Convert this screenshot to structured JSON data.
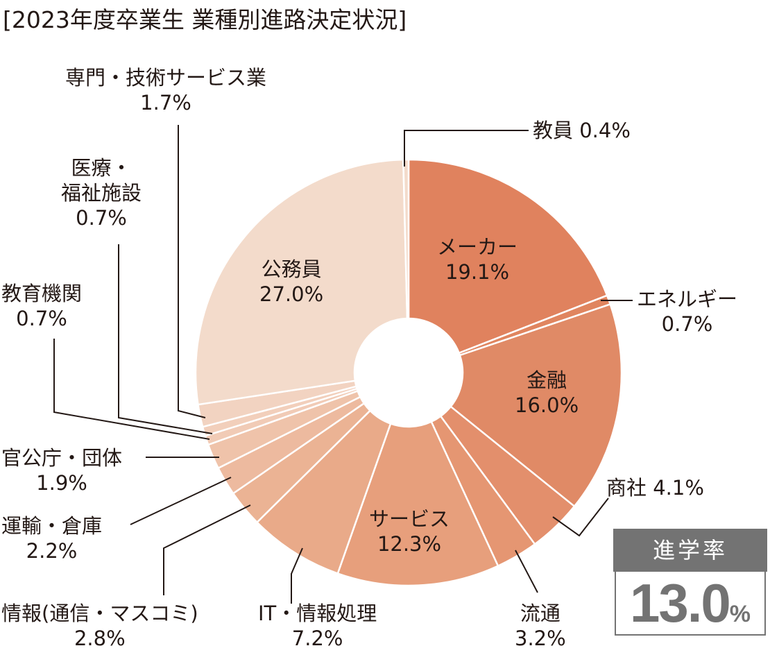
{
  "title": "[2023年度卒業生 業種別進路決定状況]",
  "rate": {
    "label": "進学率",
    "value": "13.0",
    "unit": "%"
  },
  "chart_data": {
    "type": "pie",
    "donut": true,
    "title": "[2023年度卒業生 業種別進路決定状況]",
    "start": "12 o'clock, clockwise",
    "unit": "%",
    "slices": [
      {
        "name": "メーカー",
        "value": 19.1,
        "color": "#E0825E"
      },
      {
        "name": "エネルギー",
        "value": 0.7,
        "color": "#E0855F"
      },
      {
        "name": "金融",
        "value": 16.0,
        "color": "#E08A66"
      },
      {
        "name": "商社",
        "value": 4.1,
        "color": "#E38F6C"
      },
      {
        "name": "流通",
        "value": 3.2,
        "color": "#E59672"
      },
      {
        "name": "サービス",
        "value": 12.3,
        "color": "#E79F7C"
      },
      {
        "name": "IT・情報処理",
        "value": 7.2,
        "color": "#E9AA89"
      },
      {
        "name": "情報(通信・マスコミ)",
        "value": 2.8,
        "color": "#EBB394"
      },
      {
        "name": "運輸・倉庫",
        "value": 2.2,
        "color": "#EDBA9F"
      },
      {
        "name": "官公庁・団体",
        "value": 1.9,
        "color": "#EFC3AA"
      },
      {
        "name": "教育機関",
        "value": 0.7,
        "color": "#F1CBB6"
      },
      {
        "name": "医療・福祉施設",
        "value": 0.7,
        "color": "#F2CFBB"
      },
      {
        "name": "専門・技術サービス業",
        "value": 1.7,
        "color": "#F2D3C1"
      },
      {
        "name": "公務員",
        "value": 27.0,
        "color": "#F3DBCB"
      },
      {
        "name": "教員",
        "value": 0.4,
        "color": "#F3DBCB"
      }
    ],
    "side_stat": {
      "label": "進学率",
      "value": 13.0,
      "unit": "%"
    }
  },
  "labels": {
    "maker": {
      "name": "メーカー",
      "pct": "19.1%"
    },
    "energy": {
      "name": "エネルギー",
      "pct": "0.7%"
    },
    "finance": {
      "name": "金融",
      "pct": "16.0%"
    },
    "trading": {
      "text": "商社 4.1%"
    },
    "retail": {
      "name": "流通",
      "pct": "3.2%"
    },
    "service": {
      "name": "サービス",
      "pct": "12.3%"
    },
    "it": {
      "name": "IT・情報処理",
      "pct": "7.2%"
    },
    "media": {
      "name": "情報(通信・マスコミ)",
      "pct": "2.8%"
    },
    "transport": {
      "name": "運輸・倉庫",
      "pct": "2.2%"
    },
    "govorg": {
      "name": "官公庁・団体",
      "pct": "1.9%"
    },
    "eduinst": {
      "name": "教育機関",
      "pct": "0.7%"
    },
    "medical": {
      "name1": "医療・",
      "name2": "福祉施設",
      "pct": "0.7%"
    },
    "prof": {
      "name": "専門・技術サービス業",
      "pct": "1.7%"
    },
    "civil": {
      "name": "公務員",
      "pct": "27.0%"
    },
    "teacher": {
      "text": "教員 0.4%"
    }
  }
}
